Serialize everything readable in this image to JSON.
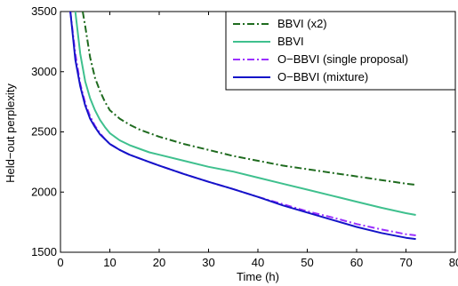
{
  "chart_data": {
    "type": "line",
    "title": "",
    "xlabel": "Time (h)",
    "ylabel": "Held−out perplexity",
    "xlim": [
      0,
      80
    ],
    "ylim": [
      1500,
      3500
    ],
    "xticks": [
      0,
      10,
      20,
      30,
      40,
      50,
      60,
      70,
      80
    ],
    "yticks": [
      1500,
      2000,
      2500,
      3000,
      3500
    ],
    "grid": false,
    "legend_position": "top-right",
    "series": [
      {
        "name": "BBVI (x2)",
        "color": "#1f6b1f",
        "dash": "dash-dot",
        "x": [
          4.5,
          5,
          6,
          7,
          8,
          9,
          10,
          12,
          14,
          16,
          18,
          20,
          25,
          30,
          35,
          40,
          45,
          50,
          55,
          60,
          65,
          70,
          72
        ],
        "y": [
          3500,
          3380,
          3120,
          2950,
          2840,
          2750,
          2680,
          2610,
          2560,
          2520,
          2490,
          2460,
          2400,
          2350,
          2300,
          2260,
          2220,
          2190,
          2160,
          2130,
          2100,
          2070,
          2060
        ]
      },
      {
        "name": "BBVI",
        "color": "#3fc08e",
        "dash": "solid",
        "x": [
          3,
          4,
          5,
          6,
          7,
          8,
          9,
          10,
          12,
          14,
          16,
          18,
          20,
          25,
          30,
          35,
          40,
          45,
          50,
          55,
          60,
          65,
          70,
          72
        ],
        "y": [
          3500,
          3150,
          2920,
          2780,
          2680,
          2600,
          2540,
          2490,
          2430,
          2390,
          2360,
          2330,
          2310,
          2260,
          2210,
          2170,
          2120,
          2070,
          2020,
          1970,
          1920,
          1870,
          1825,
          1810
        ]
      },
      {
        "name": "O−BBVI (single proposal)",
        "color": "#9b30ff",
        "dash": "dash-dot",
        "x": [
          2,
          3,
          4,
          5,
          6,
          7,
          8,
          9,
          10,
          12,
          14,
          16,
          18,
          20,
          25,
          30,
          35,
          40,
          45,
          50,
          55,
          60,
          65,
          70,
          72
        ],
        "y": [
          3500,
          3150,
          2900,
          2740,
          2630,
          2550,
          2490,
          2440,
          2400,
          2350,
          2310,
          2280,
          2250,
          2220,
          2150,
          2085,
          2025,
          1960,
          1900,
          1840,
          1790,
          1735,
          1690,
          1650,
          1640
        ]
      },
      {
        "name": "O−BBVI (mixture)",
        "color": "#1414c8",
        "dash": "solid",
        "x": [
          2,
          3,
          4,
          5,
          6,
          7,
          8,
          9,
          10,
          12,
          14,
          16,
          18,
          20,
          25,
          30,
          35,
          40,
          45,
          50,
          55,
          60,
          65,
          70,
          72
        ],
        "y": [
          3500,
          3100,
          2880,
          2720,
          2610,
          2540,
          2480,
          2440,
          2400,
          2350,
          2310,
          2280,
          2250,
          2220,
          2150,
          2085,
          2025,
          1960,
          1890,
          1830,
          1770,
          1710,
          1660,
          1620,
          1610
        ]
      }
    ]
  }
}
